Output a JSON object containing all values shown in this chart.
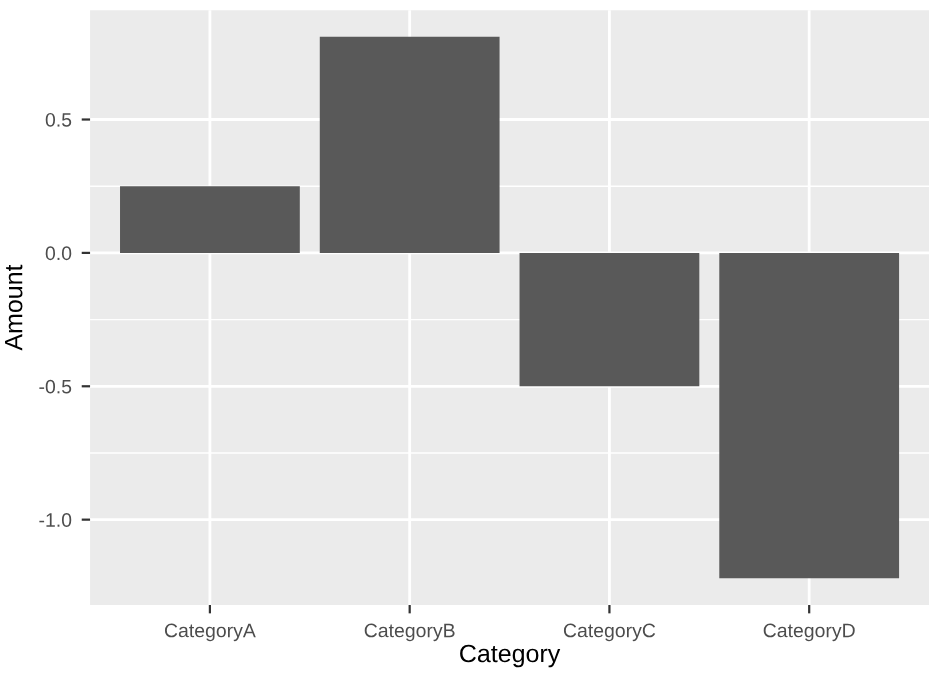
{
  "chart_data": {
    "type": "bar",
    "xlabel": "Category",
    "ylabel": "Amount",
    "categories": [
      "CategoryA",
      "CategoryB",
      "CategoryC",
      "CategoryD"
    ],
    "values": [
      0.25,
      0.81,
      -0.5,
      -1.22
    ],
    "color": "#595959",
    "ylim": [
      -1.32,
      0.91
    ],
    "yticks": [
      {
        "value": -1.0,
        "label": "-1.0"
      },
      {
        "value": -0.5,
        "label": "-0.5"
      },
      {
        "value": 0.0,
        "label": "0.0"
      },
      {
        "value": 0.5,
        "label": "0.5"
      }
    ],
    "grid": true
  }
}
